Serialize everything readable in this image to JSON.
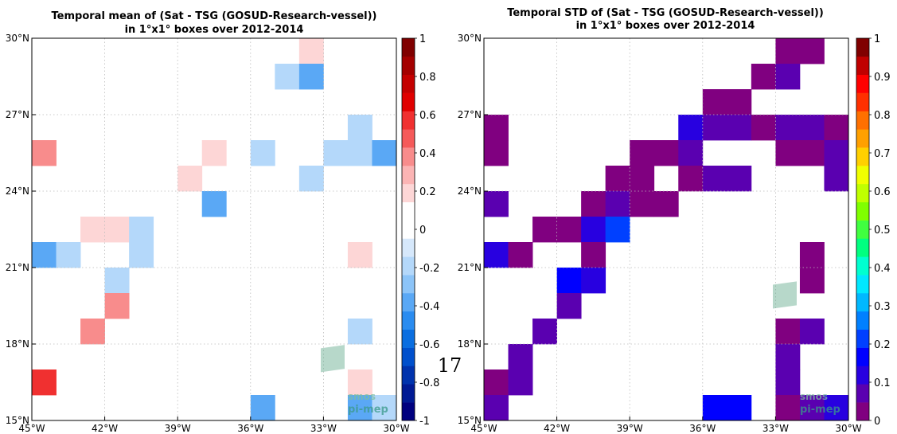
{
  "page_number": "17",
  "logo": {
    "line1": "smos",
    "line2": "pi-mep"
  },
  "colors": {
    "grid": "#bbbbbb",
    "axis": "#000000",
    "nan_fill": "#ffffff"
  },
  "chart_data": [
    {
      "type": "heatmap",
      "title": [
        "Temporal mean of (Sat - TSG (GOSUD-Research-vessel))",
        "in 1°x1° boxes over 2012-2014"
      ],
      "xlabel": "",
      "ylabel": "",
      "lon_range": [
        -45,
        -30
      ],
      "lat_range": [
        15,
        30
      ],
      "x_ticks": [
        {
          "value": -45,
          "label": "45°W"
        },
        {
          "value": -42,
          "label": "42°W"
        },
        {
          "value": -39,
          "label": "39°W"
        },
        {
          "value": -36,
          "label": "36°W"
        },
        {
          "value": -33,
          "label": "33°W"
        },
        {
          "value": -30,
          "label": "30°W"
        }
      ],
      "y_ticks": [
        {
          "value": 15,
          "label": "15°N"
        },
        {
          "value": 18,
          "label": "18°N"
        },
        {
          "value": 21,
          "label": "21°N"
        },
        {
          "value": 24,
          "label": "24°N"
        },
        {
          "value": 27,
          "label": "27°N"
        },
        {
          "value": 30,
          "label": "30°N"
        }
      ],
      "grid": true,
      "colorbar": {
        "range": [
          -1,
          1
        ],
        "tick_values": [
          1,
          0.8,
          0.6,
          0.4,
          0.2,
          0,
          -0.2,
          -0.4,
          -0.6,
          -0.8,
          -1
        ],
        "tick_labels": [
          "1",
          "0.8",
          "0.6",
          "0.4",
          "0.2",
          "0",
          "-0.2",
          "-0.4",
          "-0.6",
          "-0.8",
          "-1"
        ],
        "colors": [
          "#00007f",
          "#001a94",
          "#0033ad",
          "#0050cc",
          "#0a6ee0",
          "#2a8cf0",
          "#5aa8f5",
          "#8cc4f8",
          "#b4d8fa",
          "#d6e8fb",
          "#ffffff",
          "#ffffff",
          "#fdd6d6",
          "#fbb4b4",
          "#f88c8c",
          "#f55a5a",
          "#f03030",
          "#e00000",
          "#c40000",
          "#a40000",
          "#800000"
        ]
      },
      "cells": [
        {
          "lon": -34,
          "lat": 29,
          "value": 0.2
        },
        {
          "lon": -35,
          "lat": 28,
          "value": -0.2
        },
        {
          "lon": -34,
          "lat": 28,
          "value": -0.4
        },
        {
          "lon": -32,
          "lat": 26,
          "value": -0.2
        },
        {
          "lon": -45,
          "lat": 25,
          "value": 0.4
        },
        {
          "lon": -38,
          "lat": 25,
          "value": 0.2
        },
        {
          "lon": -36,
          "lat": 25,
          "value": -0.2
        },
        {
          "lon": -33,
          "lat": 25,
          "value": -0.2
        },
        {
          "lon": -32,
          "lat": 25,
          "value": -0.2
        },
        {
          "lon": -31,
          "lat": 25,
          "value": -0.4
        },
        {
          "lon": -39,
          "lat": 24,
          "value": 0.2
        },
        {
          "lon": -34,
          "lat": 24,
          "value": -0.2
        },
        {
          "lon": -38,
          "lat": 23,
          "value": -0.4
        },
        {
          "lon": -43,
          "lat": 22,
          "value": 0.2
        },
        {
          "lon": -42,
          "lat": 22,
          "value": 0.2
        },
        {
          "lon": -41,
          "lat": 22,
          "value": -0.2
        },
        {
          "lon": -45,
          "lat": 21,
          "value": -0.4
        },
        {
          "lon": -44,
          "lat": 21,
          "value": -0.2
        },
        {
          "lon": -41,
          "lat": 21,
          "value": -0.2
        },
        {
          "lon": -32,
          "lat": 21,
          "value": 0.2
        },
        {
          "lon": -42,
          "lat": 20,
          "value": -0.2
        },
        {
          "lon": -42,
          "lat": 19,
          "value": 0.4
        },
        {
          "lon": -43,
          "lat": 18,
          "value": 0.4
        },
        {
          "lon": -32,
          "lat": 18,
          "value": -0.2
        },
        {
          "lon": -45,
          "lat": 16,
          "value": 0.6
        },
        {
          "lon": -32,
          "lat": 16,
          "value": 0.2
        },
        {
          "lon": -36,
          "lat": 15,
          "value": -0.4
        },
        {
          "lon": -32,
          "lat": 15,
          "value": -0.4
        },
        {
          "lon": -31,
          "lat": 15,
          "value": -0.2
        }
      ]
    },
    {
      "type": "heatmap",
      "title": [
        "Temporal STD of (Sat - TSG (GOSUD-Research-vessel))",
        "in 1°x1° boxes over 2012-2014"
      ],
      "xlabel": "",
      "ylabel": "",
      "lon_range": [
        -45,
        -30
      ],
      "lat_range": [
        15,
        30
      ],
      "x_ticks": [
        {
          "value": -45,
          "label": "45°W"
        },
        {
          "value": -42,
          "label": "42°W"
        },
        {
          "value": -39,
          "label": "39°W"
        },
        {
          "value": -36,
          "label": "36°W"
        },
        {
          "value": -33,
          "label": "33°W"
        },
        {
          "value": -30,
          "label": "30°W"
        }
      ],
      "y_ticks": [
        {
          "value": 15,
          "label": "15°N"
        },
        {
          "value": 18,
          "label": "18°N"
        },
        {
          "value": 21,
          "label": "21°N"
        },
        {
          "value": 24,
          "label": "24°N"
        },
        {
          "value": 27,
          "label": "27°N"
        },
        {
          "value": 30,
          "label": "30°N"
        }
      ],
      "grid": true,
      "colorbar": {
        "range": [
          0,
          1
        ],
        "tick_values": [
          1,
          0.9,
          0.8,
          0.7,
          0.6,
          0.5,
          0.4,
          0.3,
          0.2,
          0.1,
          0
        ],
        "tick_labels": [
          "1",
          "0.9",
          "0.8",
          "0.7",
          "0.6",
          "0.5",
          "0.4",
          "0.3",
          "0.2",
          "0.1",
          "0"
        ],
        "colors": [
          "#800080",
          "#5a00b0",
          "#2800e0",
          "#0000ff",
          "#0040ff",
          "#0080ff",
          "#00b8ff",
          "#00e8ff",
          "#00ffd0",
          "#00ff80",
          "#40ff40",
          "#80ff00",
          "#c0ff00",
          "#f0ff00",
          "#ffd000",
          "#ffa000",
          "#ff7000",
          "#ff3000",
          "#ff0000",
          "#c00000",
          "#800000"
        ]
      },
      "cells": [
        {
          "lon": -33,
          "lat": 29,
          "value": 0.02
        },
        {
          "lon": -32,
          "lat": 29,
          "value": 0.02
        },
        {
          "lon": -34,
          "lat": 28,
          "value": 0.02
        },
        {
          "lon": -33,
          "lat": 28,
          "value": 0.07
        },
        {
          "lon": -36,
          "lat": 27,
          "value": 0.02
        },
        {
          "lon": -35,
          "lat": 27,
          "value": 0.02
        },
        {
          "lon": -45,
          "lat": 26,
          "value": 0.02
        },
        {
          "lon": -37,
          "lat": 26,
          "value": 0.12
        },
        {
          "lon": -36,
          "lat": 26,
          "value": 0.07
        },
        {
          "lon": -35,
          "lat": 26,
          "value": 0.07
        },
        {
          "lon": -34,
          "lat": 26,
          "value": 0.02
        },
        {
          "lon": -33,
          "lat": 26,
          "value": 0.07
        },
        {
          "lon": -32,
          "lat": 26,
          "value": 0.07
        },
        {
          "lon": -31,
          "lat": 26,
          "value": 0.02
        },
        {
          "lon": -45,
          "lat": 25,
          "value": 0.02
        },
        {
          "lon": -39,
          "lat": 25,
          "value": 0.02
        },
        {
          "lon": -38,
          "lat": 25,
          "value": 0.02
        },
        {
          "lon": -37,
          "lat": 25,
          "value": 0.07
        },
        {
          "lon": -33,
          "lat": 25,
          "value": 0.02
        },
        {
          "lon": -32,
          "lat": 25,
          "value": 0.02
        },
        {
          "lon": -31,
          "lat": 25,
          "value": 0.07
        },
        {
          "lon": -40,
          "lat": 24,
          "value": 0.02
        },
        {
          "lon": -39,
          "lat": 24,
          "value": 0.02
        },
        {
          "lon": -37,
          "lat": 24,
          "value": 0.02
        },
        {
          "lon": -36,
          "lat": 24,
          "value": 0.07
        },
        {
          "lon": -35,
          "lat": 24,
          "value": 0.07
        },
        {
          "lon": -31,
          "lat": 24,
          "value": 0.07
        },
        {
          "lon": -45,
          "lat": 23,
          "value": 0.07
        },
        {
          "lon": -41,
          "lat": 23,
          "value": 0.02
        },
        {
          "lon": -40,
          "lat": 23,
          "value": 0.07
        },
        {
          "lon": -39,
          "lat": 23,
          "value": 0.02
        },
        {
          "lon": -38,
          "lat": 23,
          "value": 0.02
        },
        {
          "lon": -43,
          "lat": 22,
          "value": 0.02
        },
        {
          "lon": -42,
          "lat": 22,
          "value": 0.02
        },
        {
          "lon": -41,
          "lat": 22,
          "value": 0.12
        },
        {
          "lon": -40,
          "lat": 22,
          "value": 0.22
        },
        {
          "lon": -45,
          "lat": 21,
          "value": 0.12
        },
        {
          "lon": -44,
          "lat": 21,
          "value": 0.02
        },
        {
          "lon": -41,
          "lat": 21,
          "value": 0.02
        },
        {
          "lon": -32,
          "lat": 21,
          "value": 0.02
        },
        {
          "lon": -42,
          "lat": 20,
          "value": 0.17
        },
        {
          "lon": -41,
          "lat": 20,
          "value": 0.12
        },
        {
          "lon": -32,
          "lat": 20,
          "value": 0.02
        },
        {
          "lon": -42,
          "lat": 19,
          "value": 0.07
        },
        {
          "lon": -43,
          "lat": 18,
          "value": 0.07
        },
        {
          "lon": -33,
          "lat": 18,
          "value": 0.02
        },
        {
          "lon": -32,
          "lat": 18,
          "value": 0.07
        },
        {
          "lon": -44,
          "lat": 17,
          "value": 0.07
        },
        {
          "lon": -33,
          "lat": 17,
          "value": 0.07
        },
        {
          "lon": -45,
          "lat": 16,
          "value": 0.02
        },
        {
          "lon": -44,
          "lat": 16,
          "value": 0.07
        },
        {
          "lon": -33,
          "lat": 16,
          "value": 0.07
        },
        {
          "lon": -45,
          "lat": 15,
          "value": 0.07
        },
        {
          "lon": -36,
          "lat": 15,
          "value": 0.17
        },
        {
          "lon": -35,
          "lat": 15,
          "value": 0.17
        },
        {
          "lon": -33,
          "lat": 15,
          "value": 0.02
        },
        {
          "lon": -32,
          "lat": 15,
          "value": 0.07
        },
        {
          "lon": -31,
          "lat": 15,
          "value": 0.12
        }
      ]
    }
  ]
}
